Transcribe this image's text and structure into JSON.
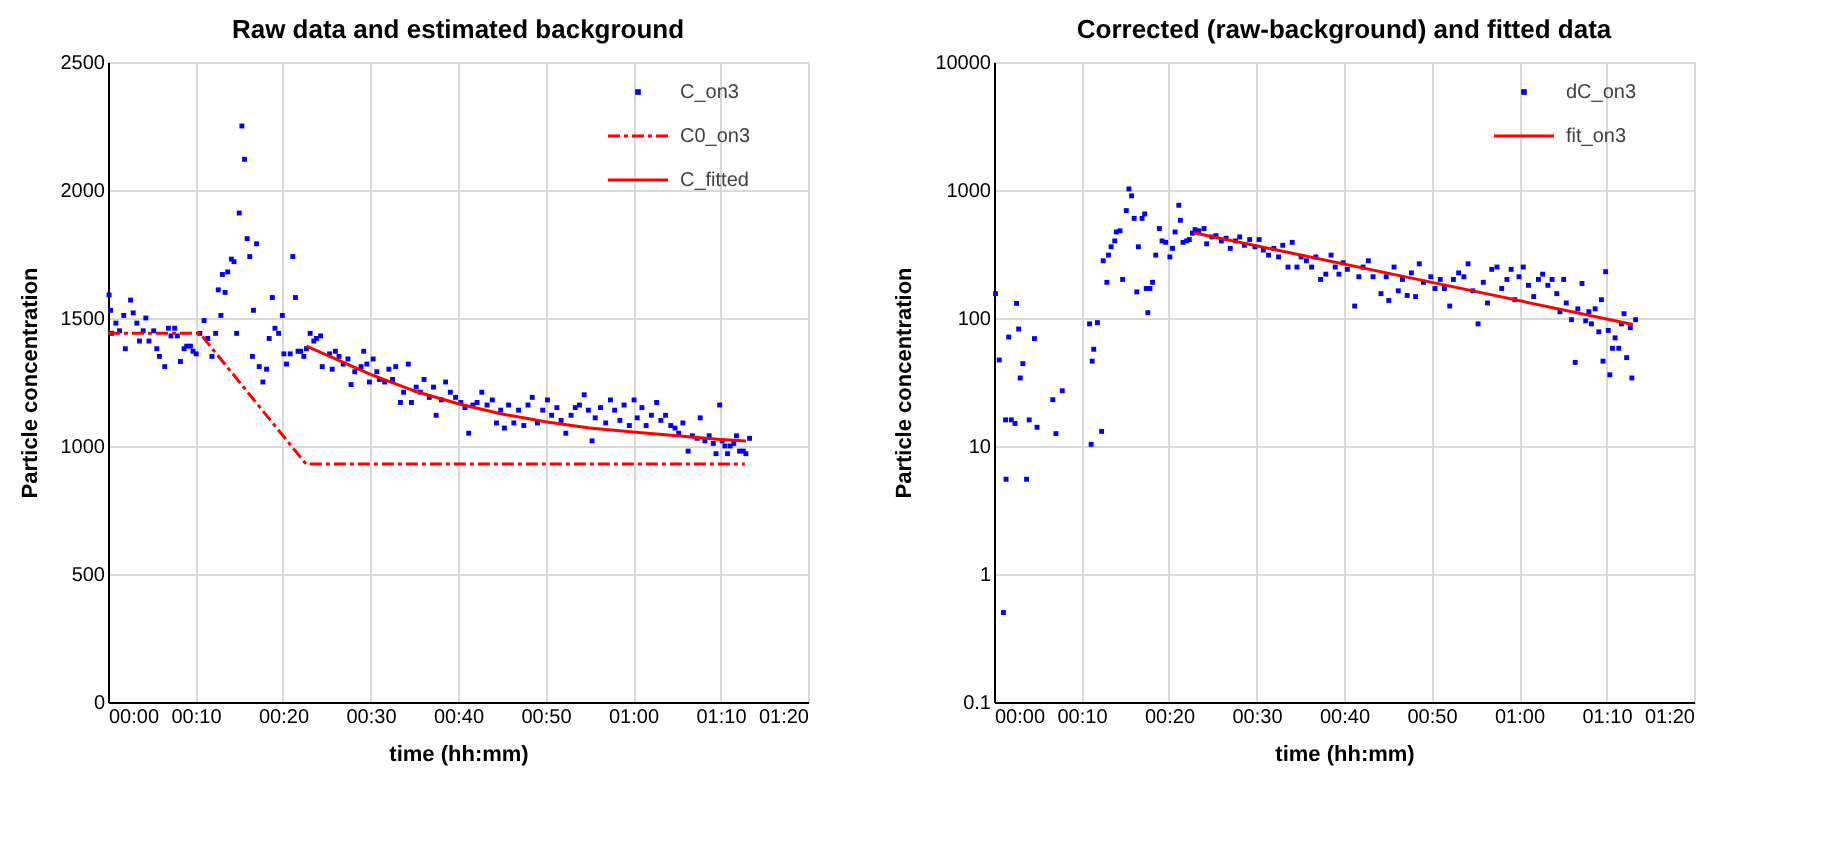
{
  "chart_data": [
    {
      "type": "scatter",
      "title": "Raw  data and estimated background",
      "xlabel": "time (hh:mm)",
      "ylabel": "Particle concentration",
      "xlim": [
        0,
        1.3333
      ],
      "xticks": [
        {
          "value": 0,
          "label": "00:00"
        },
        {
          "value": 0.1667,
          "label": "00:10"
        },
        {
          "value": 0.3333,
          "label": "00:20"
        },
        {
          "value": 0.5,
          "label": "00:30"
        },
        {
          "value": 0.6667,
          "label": "00:40"
        },
        {
          "value": 0.8333,
          "label": "00:50"
        },
        {
          "value": 1,
          "label": "01:00"
        },
        {
          "value": 1.1667,
          "label": "01:10"
        },
        {
          "value": 1.3333,
          "label": "01:20"
        }
      ],
      "ylim": [
        0,
        2500
      ],
      "yticks": [
        0,
        500,
        1000,
        1500,
        2000,
        2500
      ],
      "grid": true,
      "legend": "top right",
      "marker": "square",
      "series": [
        {
          "name": "C_on3",
          "color": "#0000ff",
          "x": [
            0.002,
            0.005,
            0.007,
            0.015,
            0.022,
            0.03,
            0.033,
            0.043,
            0.048,
            0.055,
            0.06,
            0.067,
            0.072,
            0.078,
            0.087,
            0.093,
            0.098,
            0.108,
            0.115,
            0.12,
            0.127,
            0.132,
            0.138,
            0.145,
            0.15,
            0.157,
            0.162,
            0.168,
            0.175,
            0.183,
            0.19,
            0.198,
            0.205,
            0.21,
            0.215,
            0.218,
            0.223,
            0.228,
            0.235,
            0.24,
            0.245,
            0.25,
            0.255,
            0.26,
            0.265,
            0.27,
            0.275,
            0.277,
            0.283,
            0.288,
            0.295,
            0.302,
            0.307,
            0.313,
            0.318,
            0.325,
            0.332,
            0.335,
            0.34,
            0.347,
            0.352,
            0.357,
            0.362,
            0.367,
            0.373,
            0.378,
            0.385,
            0.392,
            0.397,
            0.405,
            0.408,
            0.422,
            0.427,
            0.433,
            0.44,
            0.448,
            0.457,
            0.463,
            0.47,
            0.482,
            0.487,
            0.493,
            0.498,
            0.505,
            0.512,
            0.517,
            0.527,
            0.535,
            0.542,
            0.548,
            0.557,
            0.563,
            0.572,
            0.578,
            0.587,
            0.595,
            0.602,
            0.612,
            0.62,
            0.625,
            0.635,
            0.643,
            0.652,
            0.662,
            0.672,
            0.68,
            0.687,
            0.695,
            0.703,
            0.712,
            0.722,
            0.732,
            0.74,
            0.748,
            0.755,
            0.763,
            0.773,
            0.782,
            0.792,
            0.8,
            0.808,
            0.818,
            0.828,
            0.837,
            0.845,
            0.855,
            0.863,
            0.872,
            0.882,
            0.89,
            0.898,
            0.907,
            0.915,
            0.922,
            0.928,
            0.938,
            0.948,
            0.957,
            0.965,
            0.975,
            0.983,
            0.993,
            1.002,
            1.008,
            1.017,
            1.025,
            1.035,
            1.045,
            1.053,
            1.062,
            1.072,
            1.08,
            1.087,
            1.095,
            1.105,
            1.113,
            1.122,
            1.128,
            1.137,
            1.145,
            1.153,
            1.158,
            1.165,
            1.17,
            1.175,
            1.18,
            1.185,
            1.192,
            1.197,
            1.203,
            1.21,
            1.215,
            1.222
          ],
          "values": [
            1590,
            1530,
            1440,
            1480,
            1450,
            1510,
            1380,
            1570,
            1520,
            1480,
            1410,
            1450,
            1500,
            1410,
            1450,
            1380,
            1350,
            1310,
            1460,
            1430,
            1460,
            1430,
            1330,
            1380,
            1390,
            1390,
            1370,
            1360,
            1440,
            1490,
            1420,
            1350,
            1440,
            1610,
            1510,
            1670,
            1600,
            1680,
            1730,
            1720,
            1440,
            1910,
            2250,
            2120,
            1810,
            1740,
            1350,
            1530,
            1790,
            1310,
            1250,
            1300,
            1420,
            1580,
            1460,
            1440,
            1510,
            1360,
            1320,
            1360,
            1740,
            1580,
            1370,
            1370,
            1350,
            1380,
            1440,
            1410,
            1420,
            1430,
            1310,
            1360,
            1300,
            1370,
            1350,
            1320,
            1340,
            1240,
            1290,
            1310,
            1370,
            1320,
            1250,
            1340,
            1290,
            1260,
            1250,
            1300,
            1260,
            1310,
            1170,
            1210,
            1320,
            1170,
            1230,
            1210,
            1260,
            1190,
            1230,
            1120,
            1180,
            1250,
            1210,
            1190,
            1170,
            1150,
            1050,
            1160,
            1170,
            1210,
            1160,
            1180,
            1090,
            1140,
            1070,
            1160,
            1090,
            1140,
            1080,
            1160,
            1190,
            1090,
            1140,
            1180,
            1120,
            1150,
            1100,
            1050,
            1120,
            1150,
            1160,
            1200,
            1140,
            1020,
            1110,
            1150,
            1090,
            1180,
            1140,
            1100,
            1160,
            1080,
            1180,
            1110,
            1150,
            1080,
            1120,
            1170,
            1100,
            1120,
            1080,
            1070,
            1050,
            1090,
            980,
            1040,
            1030,
            1110,
            1020,
            1040,
            1010,
            970,
            1160,
            1020,
            1000,
            970,
            1000,
            1010,
            1040,
            980,
            980,
            970,
            1030
          ]
        },
        {
          "name": "C0_on3",
          "type": "line",
          "marker": "none",
          "color": "#ff0000",
          "line_style": "dashed",
          "x": [
            0,
            0.175,
            0.377,
            1.213
          ],
          "values": [
            1440,
            1440,
            930,
            930
          ]
        },
        {
          "name": "C_fitted",
          "type": "line",
          "marker": "none",
          "color": "#ff0000",
          "line_style": "solid",
          "x": [
            0.378,
            0.433,
            0.5,
            0.583,
            0.667,
            0.75,
            0.833,
            0.917,
            1.0,
            1.083,
            1.167,
            1.215
          ],
          "values": [
            1390,
            1340,
            1280,
            1215,
            1165,
            1125,
            1095,
            1070,
            1055,
            1040,
            1025,
            1020
          ]
        }
      ]
    },
    {
      "type": "scatter",
      "title": "Corrected (raw-background) and fitted data",
      "xlabel": "time (hh:mm)",
      "ylabel": "Particle concentration",
      "log": "y",
      "xlim": [
        0,
        1.3333
      ],
      "xticks": [
        {
          "value": 0,
          "label": "00:00"
        },
        {
          "value": 0.1667,
          "label": "00:10"
        },
        {
          "value": 0.3333,
          "label": "00:20"
        },
        {
          "value": 0.5,
          "label": "00:30"
        },
        {
          "value": 0.6667,
          "label": "00:40"
        },
        {
          "value": 0.8333,
          "label": "00:50"
        },
        {
          "value": 1,
          "label": "01:00"
        },
        {
          "value": 1.1667,
          "label": "01:10"
        },
        {
          "value": 1.3333,
          "label": "01:20"
        }
      ],
      "ylim": [
        0.1,
        10000
      ],
      "yticks": [
        0.1,
        1,
        10,
        100,
        1000,
        10000
      ],
      "grid": true,
      "legend": "top right",
      "marker": "square",
      "series": [
        {
          "name": "dC_on3",
          "color": "#0000ff",
          "x": [
            0.003,
            0.01,
            0.018,
            0.022,
            0.023,
            0.028,
            0.033,
            0.04,
            0.043,
            0.047,
            0.05,
            0.055,
            0.062,
            0.067,
            0.077,
            0.082,
            0.112,
            0.118,
            0.13,
            0.182,
            0.185,
            0.187,
            0.19,
            0.197,
            0.205,
            0.208,
            0.215,
            0.218,
            0.223,
            0.23,
            0.233,
            0.24,
            0.245,
            0.252,
            0.257,
            0.262,
            0.267,
            0.272,
            0.275,
            0.282,
            0.287,
            0.29,
            0.293,
            0.297,
            0.302,
            0.308,
            0.315,
            0.32,
            0.327,
            0.335,
            0.34,
            0.345,
            0.352,
            0.355,
            0.36,
            0.367,
            0.372,
            0.378,
            0.383,
            0.39,
            0.4,
            0.405,
            0.415,
            0.423,
            0.433,
            0.442,
            0.45,
            0.46,
            0.468,
            0.477,
            0.487,
            0.497,
            0.505,
            0.513,
            0.523,
            0.533,
            0.542,
            0.55,
            0.56,
            0.568,
            0.577,
            0.585,
            0.595,
            0.605,
            0.613,
            0.622,
            0.632,
            0.642,
            0.65,
            0.657,
            0.665,
            0.673,
            0.687,
            0.695,
            0.703,
            0.713,
            0.722,
            0.737,
            0.747,
            0.752,
            0.762,
            0.77,
            0.778,
            0.787,
            0.795,
            0.803,
            0.81,
            0.818,
            0.832,
            0.84,
            0.85,
            0.858,
            0.868,
            0.875,
            0.885,
            0.895,
            0.903,
            0.912,
            0.922,
            0.932,
            0.94,
            0.948,
            0.958,
            0.967,
            0.977,
            0.985,
            0.992,
            1.0,
            1.008,
            1.018,
            1.028,
            1.037,
            1.045,
            1.055,
            1.063,
            1.072,
            1.078,
            1.085,
            1.09,
            1.1,
            1.107,
            1.112,
            1.12,
            1.127,
            1.133,
            1.138,
            1.145,
            1.152,
            1.157,
            1.16,
            1.165,
            1.17,
            1.173,
            1.178,
            1.183,
            1.19,
            1.195,
            1.2,
            1.205,
            1.212,
            1.215,
            1.222
          ],
          "values": [
            155,
            47,
            0.5,
            16,
            5.5,
            71,
            16,
            15,
            130,
            82,
            34,
            44,
            5.5,
            16,
            69,
            14,
            23,
            12.5,
            27,
            90,
            10.3,
            46,
            57,
            92,
            13,
            280,
            190,
            310,
            360,
            400,
            470,
            480,
            200,
            690,
            1020,
            900,
            600,
            160,
            360,
            600,
            650,
            170,
            110,
            170,
            190,
            310,
            500,
            400,
            390,
            300,
            350,
            470,
            760,
            580,
            390,
            400,
            410,
            460,
            490,
            480,
            500,
            380,
            430,
            440,
            400,
            420,
            350,
            400,
            430,
            370,
            410,
            360,
            410,
            340,
            310,
            350,
            300,
            370,
            250,
            390,
            250,
            300,
            280,
            250,
            300,
            200,
            220,
            310,
            250,
            220,
            270,
            240,
            124,
            210,
            250,
            280,
            210,
            155,
            210,
            137,
            250,
            163,
            200,
            150,
            225,
            147,
            265,
            190,
            210,
            170,
            200,
            170,
            124,
            200,
            225,
            210,
            265,
            163,
            90,
            190,
            131,
            240,
            250,
            170,
            200,
            240,
            139,
            210,
            250,
            180,
            147,
            200,
            220,
            180,
            200,
            155,
            112,
            200,
            131,
            97,
            45,
            118,
            186,
            95,
            112,
            90,
            118,
            78,
            139,
            46,
            230,
            80,
            36,
            58,
            70,
            58,
            90,
            108,
            49,
            84,
            34,
            97
          ]
        },
        {
          "name": "fit_on3",
          "type": "line",
          "marker": "none",
          "color": "#ff0000",
          "line_style": "solid",
          "x": [
            0.38,
            0.8,
            1.217
          ],
          "values": [
            464,
            203,
            89
          ]
        }
      ]
    }
  ]
}
